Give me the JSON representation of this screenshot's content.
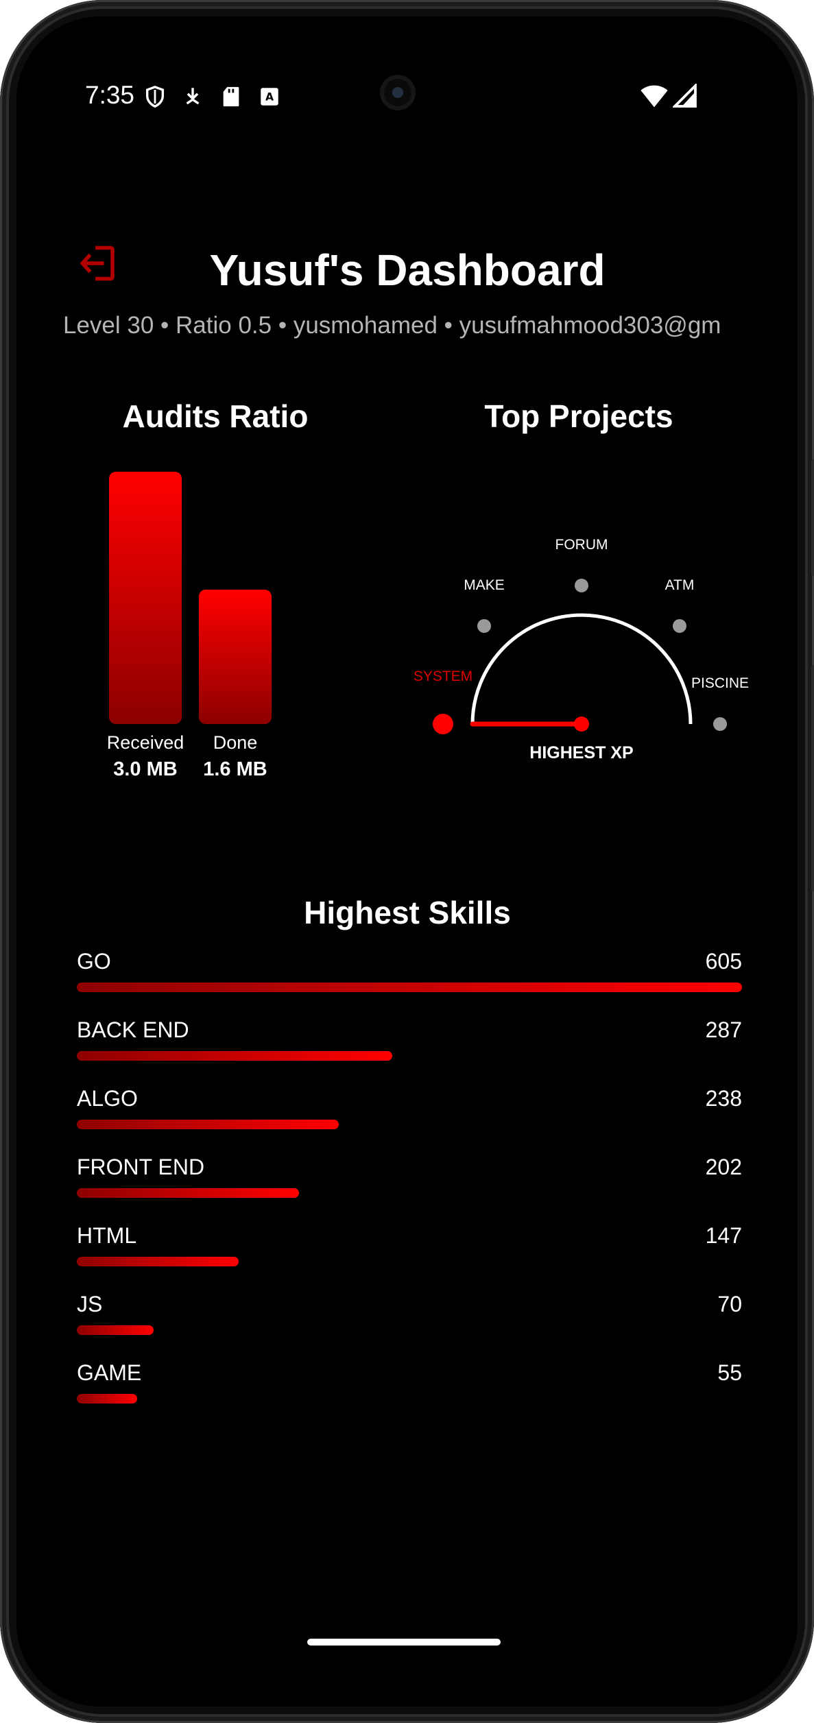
{
  "status_bar": {
    "time": "7:35",
    "left_icons": [
      "shield-icon",
      "download-icon",
      "sd-card-icon",
      "keyboard-a-icon"
    ],
    "right_icons": [
      "wifi-icon",
      "signal-icon"
    ]
  },
  "header": {
    "title": "Yusuf's Dashboard",
    "subtitle": "Level 30 • Ratio 0.5 • yusmohamed • yusufmahmood303@gm",
    "logout_icon": "logout-icon",
    "accent_color": "#e00000"
  },
  "audits": {
    "title": "Audits Ratio",
    "received": {
      "label": "Received",
      "value": "3.0 MB"
    },
    "done": {
      "label": "Done",
      "value": "1.6 MB"
    },
    "chart_data": {
      "type": "bar",
      "categories": [
        "Received",
        "Done"
      ],
      "values": [
        3.0,
        1.6
      ],
      "unit": "MB",
      "title": "Audits Ratio"
    }
  },
  "projects": {
    "title": "Top Projects",
    "projects": [
      "SYSTEM",
      "MAKE",
      "FORUM",
      "ATM",
      "PISCINE"
    ],
    "selected": "SYSTEM",
    "center_label": "HIGHEST XP"
  },
  "skills": {
    "title": "Highest Skills",
    "items": [
      {
        "name": "GO",
        "value": "605"
      },
      {
        "name": "BACK END",
        "value": "287"
      },
      {
        "name": "ALGO",
        "value": "238"
      },
      {
        "name": "FRONT END",
        "value": "202"
      },
      {
        "name": "HTML",
        "value": "147"
      },
      {
        "name": "JS",
        "value": "70"
      },
      {
        "name": "GAME",
        "value": "55"
      }
    ],
    "max_value": 605
  }
}
